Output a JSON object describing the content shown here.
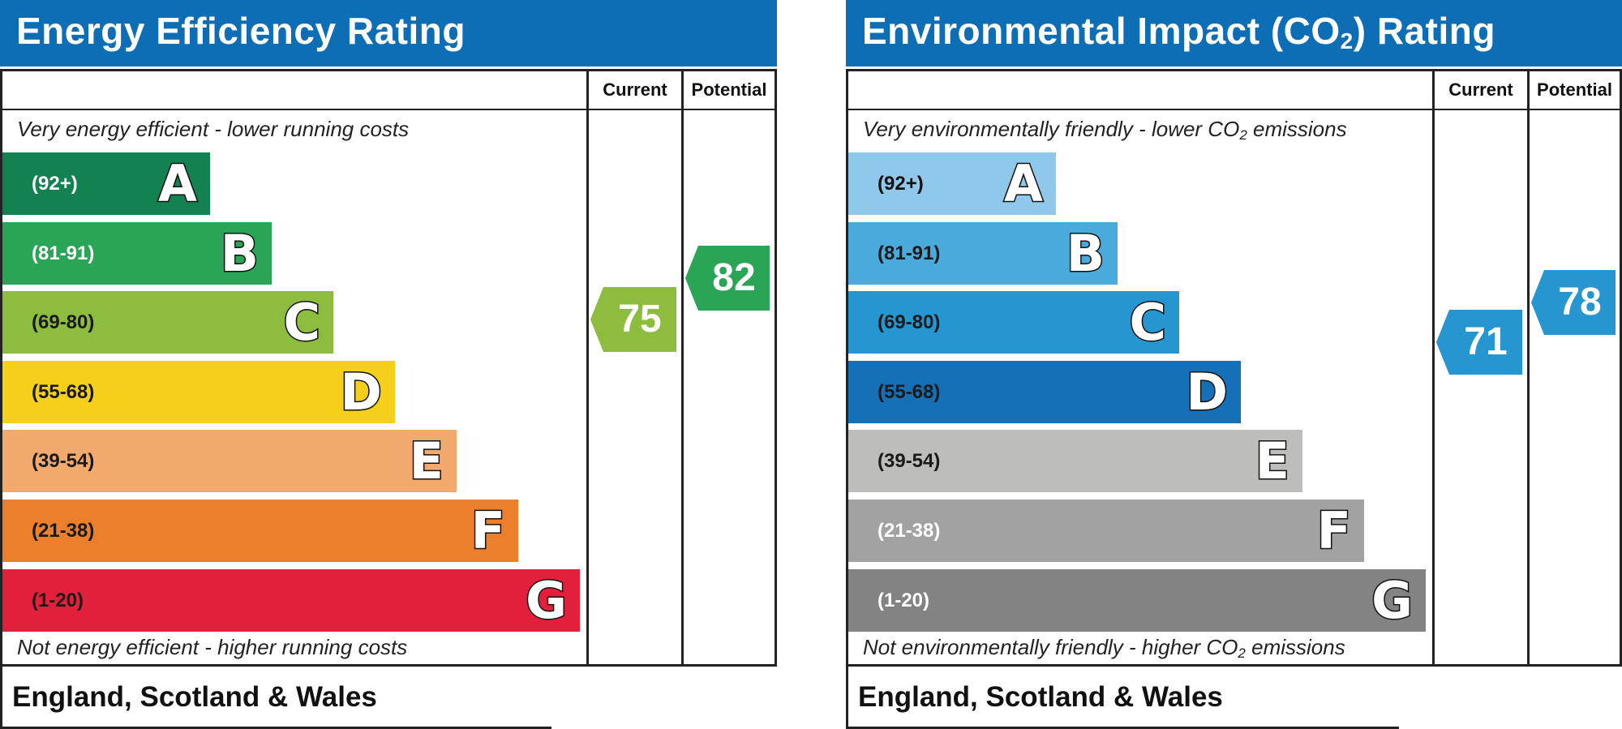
{
  "chart_data": [
    {
      "type": "bar",
      "title": "Energy Efficiency Rating",
      "column_headers": [
        "Current",
        "Potential"
      ],
      "top_caption": "Very energy efficient - lower running costs",
      "bottom_caption": "Not energy efficient - higher running costs",
      "footer": "England, Scotland & Wales",
      "bands": [
        {
          "range": "(92+)",
          "letter": "A",
          "color": "#138150",
          "text_color": "#ffffff"
        },
        {
          "range": "(81-91)",
          "letter": "B",
          "color": "#2aa556",
          "text_color": "#ffffff"
        },
        {
          "range": "(69-80)",
          "letter": "C",
          "color": "#8dbd3e",
          "text_color": "#1a1a1a"
        },
        {
          "range": "(55-68)",
          "letter": "D",
          "color": "#f6cf1b",
          "text_color": "#1a1a1a"
        },
        {
          "range": "(39-54)",
          "letter": "E",
          "color": "#f1a96d",
          "text_color": "#1a1a1a"
        },
        {
          "range": "(21-38)",
          "letter": "F",
          "color": "#eb7f2b",
          "text_color": "#1a1a1a"
        },
        {
          "range": "(1-20)",
          "letter": "G",
          "color": "#e3203b",
          "text_color": "#1a1a1a"
        }
      ],
      "current": {
        "value": "75",
        "band": "C",
        "color": "#8dbd3e"
      },
      "potential": {
        "value": "82",
        "band": "B",
        "color": "#2aa556"
      }
    },
    {
      "type": "bar",
      "title_main": "Environmental Impact (CO",
      "title_sub": "2",
      "title_end": ") Rating",
      "column_headers": [
        "Current",
        "Potential"
      ],
      "top_caption_main": "Very environmentally friendly - lower CO",
      "top_caption_sub": "2",
      "top_caption_end": " emissions",
      "bottom_caption_main": "Not environmentally friendly - higher CO",
      "bottom_caption_sub": "2",
      "bottom_caption_end": " emissions",
      "footer": "England, Scotland & Wales",
      "bands": [
        {
          "range": "(92+)",
          "letter": "A",
          "color": "#8fc8ea",
          "text_color": "#111111"
        },
        {
          "range": "(81-91)",
          "letter": "B",
          "color": "#4aaadc",
          "text_color": "#1a1a1a"
        },
        {
          "range": "(69-80)",
          "letter": "C",
          "color": "#2596d0",
          "text_color": "#1a1a1a"
        },
        {
          "range": "(55-68)",
          "letter": "D",
          "color": "#1670b8",
          "text_color": "#1a1a1a"
        },
        {
          "range": "(39-54)",
          "letter": "E",
          "color": "#bdbdbb",
          "text_color": "#1a1a1a"
        },
        {
          "range": "(21-38)",
          "letter": "F",
          "color": "#a2a2a2",
          "text_color": "#ffffff"
        },
        {
          "range": "(1-20)",
          "letter": "G",
          "color": "#838383",
          "text_color": "#ffffff"
        }
      ],
      "current": {
        "value": "71",
        "band": "C",
        "color": "#2596d0"
      },
      "potential": {
        "value": "78",
        "band": "C",
        "color": "#2596d0"
      }
    }
  ]
}
